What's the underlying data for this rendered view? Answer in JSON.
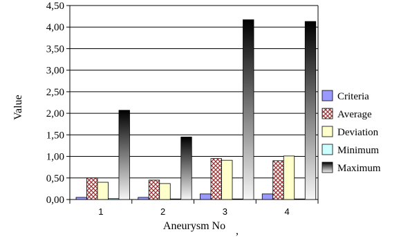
{
  "chart_data": {
    "type": "bar",
    "title": "",
    "xlabel": "Aneurysm No",
    "ylabel": "Value",
    "trailing_mark": ",",
    "categories": [
      "1",
      "2",
      "3",
      "4"
    ],
    "ylim": [
      0,
      4.5
    ],
    "yticks": [
      "0,00",
      "0,50",
      "1,00",
      "1,50",
      "2,00",
      "2,50",
      "3,00",
      "3,50",
      "4,00",
      "4,50"
    ],
    "grid": true,
    "legend_position": "right",
    "series": [
      {
        "name": "Criteria",
        "values": [
          0.05,
          0.05,
          0.13,
          0.13
        ],
        "fill": "#9999ff",
        "pattern": "solid"
      },
      {
        "name": "Average",
        "values": [
          0.5,
          0.45,
          0.95,
          0.9
        ],
        "fill": "#993366",
        "pattern": "crosshatch"
      },
      {
        "name": "Deviation",
        "values": [
          0.4,
          0.37,
          0.91,
          1.01
        ],
        "fill": "#ffffcc",
        "pattern": "solid"
      },
      {
        "name": "Minimum",
        "values": [
          0.02,
          0.0,
          0.0,
          0.0
        ],
        "fill": "#ccffff",
        "pattern": "solid"
      },
      {
        "name": "Maximum",
        "values": [
          2.07,
          1.45,
          4.17,
          4.13
        ],
        "fill": "#000000",
        "pattern": "vertical-gradient"
      }
    ]
  }
}
